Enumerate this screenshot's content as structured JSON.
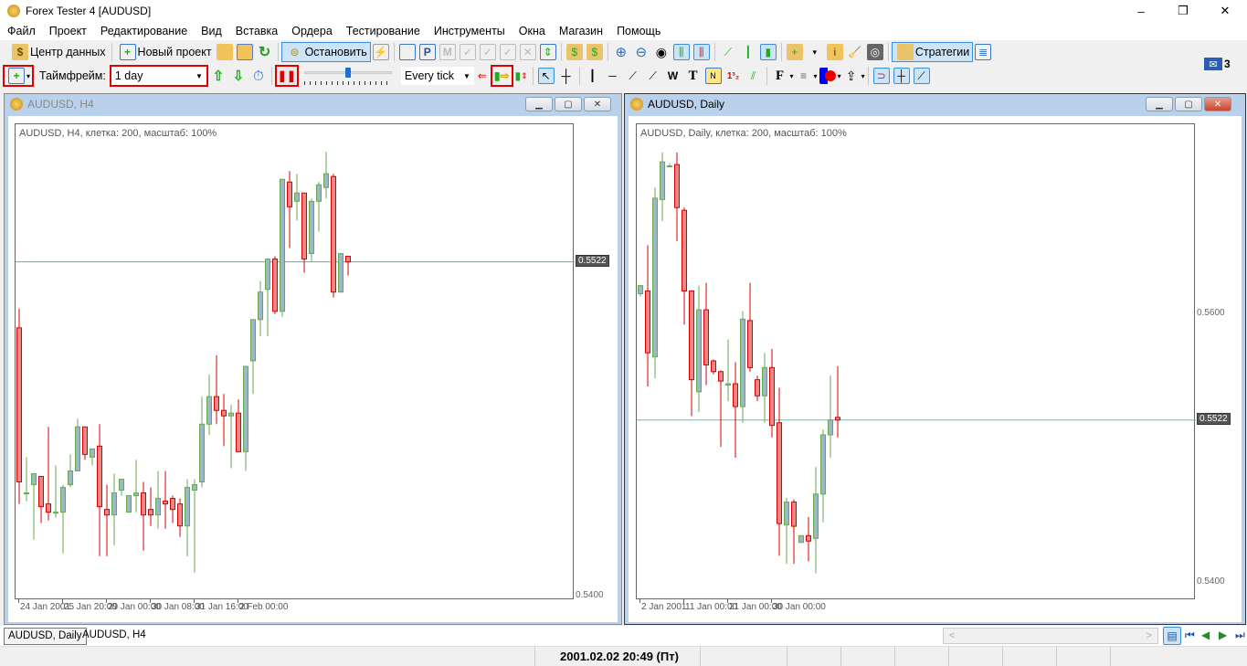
{
  "window": {
    "title": "Forex Tester 4  [AUDUSD]",
    "minimize": "–",
    "maximize": "❐",
    "close": "✕"
  },
  "menu": [
    "Файл",
    "Проект",
    "Редактирование",
    "Вид",
    "Вставка",
    "Ордера",
    "Тестирование",
    "Инструменты",
    "Окна",
    "Магазин",
    "Помощь"
  ],
  "toolbar1": {
    "data_center": "Центр данных",
    "new_project": "Новый проект",
    "stop": "Остановить",
    "strategies": "Стратегии"
  },
  "toolbar2": {
    "timeframe_label": "Таймфрейм:",
    "timeframe_value": "1 day",
    "tick_mode": "Every tick",
    "speed_fraction": 0.5
  },
  "mail": {
    "count": "3"
  },
  "charts": [
    {
      "title": "AUDUSD, H4",
      "info": "AUDUSD, H4, клетка: 200, масштаб: 100%",
      "current_price": "0.5522",
      "price_labels": [
        "0.5400"
      ],
      "x_labels": [
        "24 Jan 2001",
        "25 Jan 20:00",
        "29 Jan 00:00",
        "30 Jan 08:00",
        "31 Jan 16:00",
        "2 Feb 00:00"
      ],
      "line_color": "#8a9aa0"
    },
    {
      "title": "AUDUSD, Daily",
      "info": "AUDUSD, Daily, клетка: 200, масштаб: 100%",
      "current_price": "0.5522",
      "price_labels": [
        "0.5600",
        "0.5400"
      ],
      "x_labels": [
        "2 Jan 2001",
        "11 Jan 00:00",
        "21 Jan 00:00",
        "30 Jan 00:00"
      ],
      "line_color": "#40c8c8"
    }
  ],
  "chart_data": [
    {
      "type": "candlestick",
      "title": "AUDUSD, H4",
      "ylim": [
        0.5399,
        0.5572
      ],
      "bull_color": "#9ab8c8",
      "bear_color": "#e88888",
      "ohlc": [
        [
          0.5498,
          0.5505,
          0.5434,
          0.5442
        ],
        [
          0.5438,
          0.5451,
          0.5435,
          0.5438
        ],
        [
          0.5441,
          0.5445,
          0.5421,
          0.5445
        ],
        [
          0.5444,
          0.5444,
          0.5427,
          0.5433
        ],
        [
          0.5434,
          0.5462,
          0.5428,
          0.5431
        ],
        [
          0.5431,
          0.5448,
          0.5429,
          0.5431
        ],
        [
          0.5431,
          0.5441,
          0.5416,
          0.544
        ],
        [
          0.5441,
          0.5452,
          0.544,
          0.5446
        ],
        [
          0.5446,
          0.5465,
          0.5446,
          0.5462
        ],
        [
          0.5462,
          0.5462,
          0.545,
          0.5452
        ],
        [
          0.5451,
          0.5454,
          0.5448,
          0.5454
        ],
        [
          0.5455,
          0.5463,
          0.5415,
          0.5433
        ],
        [
          0.5432,
          0.5441,
          0.5415,
          0.543
        ],
        [
          0.543,
          0.5445,
          0.5419,
          0.5438
        ],
        [
          0.5439,
          0.5443,
          0.5437,
          0.5443
        ],
        [
          0.5431,
          0.5437,
          0.5431,
          0.5437
        ],
        [
          0.5437,
          0.545,
          0.5431,
          0.5438
        ],
        [
          0.5438,
          0.5442,
          0.5417,
          0.543
        ],
        [
          0.5432,
          0.544,
          0.5426,
          0.543
        ],
        [
          0.543,
          0.5446,
          0.5425,
          0.5436
        ],
        [
          0.5435,
          0.5446,
          0.5425,
          0.5434
        ],
        [
          0.5436,
          0.5437,
          0.5427,
          0.5432
        ],
        [
          0.5434,
          0.5436,
          0.5422,
          0.5426
        ],
        [
          0.5426,
          0.5443,
          0.5415,
          0.544
        ],
        [
          0.5439,
          0.5443,
          0.5409,
          0.5441
        ],
        [
          0.5442,
          0.5473,
          0.544,
          0.5463
        ],
        [
          0.5463,
          0.5481,
          0.5459,
          0.5473
        ],
        [
          0.5473,
          0.5488,
          0.5463,
          0.5468
        ],
        [
          0.5468,
          0.5474,
          0.5455,
          0.5466
        ],
        [
          0.5466,
          0.547,
          0.5447,
          0.5467
        ],
        [
          0.5467,
          0.5472,
          0.5453,
          0.5453
        ],
        [
          0.5453,
          0.5484,
          0.5446,
          0.5484
        ],
        [
          0.5486,
          0.5501,
          0.5474,
          0.5501
        ],
        [
          0.5501,
          0.5515,
          0.5495,
          0.5511
        ],
        [
          0.5512,
          0.5523,
          0.5495,
          0.5523
        ],
        [
          0.5523,
          0.5524,
          0.5503,
          0.5504
        ],
        [
          0.5504,
          0.5552,
          0.5502,
          0.5552
        ],
        [
          0.5551,
          0.5555,
          0.5527,
          0.5542
        ],
        [
          0.5544,
          0.5554,
          0.5537,
          0.5547
        ],
        [
          0.5547,
          0.5547,
          0.5518,
          0.5523
        ],
        [
          0.5525,
          0.5545,
          0.5522,
          0.5544
        ],
        [
          0.5544,
          0.5551,
          0.5533,
          0.555
        ],
        [
          0.5549,
          0.5562,
          0.5545,
          0.5554
        ],
        [
          0.5553,
          0.5554,
          0.5509,
          0.5511
        ],
        [
          0.5511,
          0.5525,
          0.5511,
          0.5525
        ],
        [
          0.5524,
          0.5524,
          0.5517,
          0.5522
        ]
      ]
    },
    {
      "type": "candlestick",
      "title": "AUDUSD, Daily",
      "ylim": [
        0.5388,
        0.5742
      ],
      "bull_color": "#9ab8c8",
      "bear_color": "#e88888",
      "ohlc": [
        [
          0.5616,
          0.5622,
          0.5614,
          0.5622
        ],
        [
          0.5618,
          0.5652,
          0.5547,
          0.5572
        ],
        [
          0.5569,
          0.5695,
          0.5553,
          0.5687
        ],
        [
          0.5686,
          0.5721,
          0.567,
          0.5714
        ],
        [
          0.5711,
          0.5713,
          0.5711,
          0.5711
        ],
        [
          0.5712,
          0.5721,
          0.5655,
          0.568
        ],
        [
          0.5678,
          0.568,
          0.5593,
          0.5618
        ],
        [
          0.5618,
          0.5618,
          0.5525,
          0.5552
        ],
        [
          0.5543,
          0.5622,
          0.5528,
          0.5604
        ],
        [
          0.5604,
          0.5624,
          0.5548,
          0.5563
        ],
        [
          0.5566,
          0.5567,
          0.5556,
          0.5558
        ],
        [
          0.5558,
          0.5559,
          0.5502,
          0.5551
        ],
        [
          0.5548,
          0.5582,
          0.5536,
          0.5549
        ],
        [
          0.5549,
          0.5565,
          0.5494,
          0.5532
        ],
        [
          0.5532,
          0.5603,
          0.552,
          0.5597
        ],
        [
          0.5596,
          0.5624,
          0.5558,
          0.5561
        ],
        [
          0.5552,
          0.5555,
          0.5536,
          0.554
        ],
        [
          0.554,
          0.5572,
          0.552,
          0.5561
        ],
        [
          0.5561,
          0.5575,
          0.5509,
          0.5518
        ],
        [
          0.552,
          0.5546,
          0.5421,
          0.5445
        ],
        [
          0.5444,
          0.5464,
          0.5415,
          0.5461
        ],
        [
          0.5461,
          0.5463,
          0.5415,
          0.5443
        ],
        [
          0.5431,
          0.5436,
          0.5431,
          0.5436
        ],
        [
          0.5436,
          0.545,
          0.5417,
          0.5432
        ],
        [
          0.5434,
          0.5487,
          0.5408,
          0.5467
        ],
        [
          0.5467,
          0.5515,
          0.5446,
          0.5511
        ],
        [
          0.5511,
          0.5555,
          0.5494,
          0.5522
        ],
        [
          0.5524,
          0.5562,
          0.5509,
          0.5522
        ]
      ]
    }
  ],
  "tabs": [
    "AUDUSD, Daily",
    "AUDUSD, H4"
  ],
  "status": {
    "datetime": "2001.02.02 20:49 (Пт)"
  }
}
